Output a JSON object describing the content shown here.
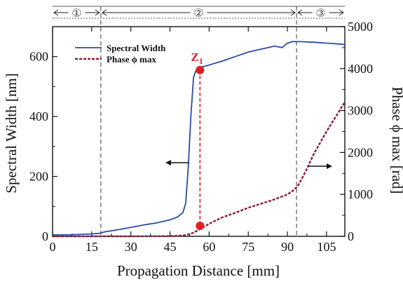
{
  "chart_data": {
    "type": "line",
    "xlabel": "Propagation Distance [mm]",
    "ylabel": "Spectral Width [nm]",
    "y2label": "Phase ϕ max [rad]",
    "xlim": [
      0,
      112
    ],
    "ylim": [
      0,
      700
    ],
    "y2lim": [
      0,
      5000
    ],
    "x_ticks": [
      0,
      15,
      30,
      45,
      60,
      75,
      90,
      105
    ],
    "y_ticks": [
      0,
      200,
      400,
      600
    ],
    "y2_ticks": [
      0,
      1000,
      2000,
      3000,
      4000,
      5000
    ],
    "y2_tick_labels": [
      "0",
      "1000",
      "2000",
      "3000",
      "4000",
      "5000"
    ],
    "legend_position": "top-left",
    "series": [
      {
        "name": "Spectral Width",
        "axis": "left",
        "color": "#2b4aa8",
        "style": "solid",
        "x": [
          0,
          5,
          10,
          15,
          18,
          20,
          25,
          30,
          35,
          40,
          45,
          48,
          50,
          51,
          52,
          53,
          54,
          55,
          56,
          57,
          60,
          65,
          70,
          75,
          80,
          85,
          88,
          90,
          92,
          95,
          100,
          105,
          110,
          112
        ],
        "values": [
          5,
          5,
          6,
          8,
          10,
          15,
          22,
          30,
          38,
          45,
          55,
          65,
          80,
          110,
          230,
          400,
          530,
          555,
          560,
          565,
          572,
          585,
          600,
          615,
          625,
          635,
          630,
          645,
          650,
          650,
          648,
          645,
          642,
          640
        ]
      },
      {
        "name": "Phase ϕ max",
        "axis": "right",
        "color": "#8b1a3a",
        "style": "dashed",
        "x": [
          0,
          30,
          45,
          50,
          53,
          56,
          60,
          65,
          70,
          75,
          80,
          85,
          90,
          92,
          94,
          97,
          100,
          105,
          110,
          112
        ],
        "values": [
          0,
          0,
          5,
          20,
          60,
          150,
          300,
          450,
          560,
          680,
          780,
          880,
          1000,
          1080,
          1200,
          1550,
          1950,
          2500,
          3000,
          3200
        ]
      }
    ],
    "regions": [
      {
        "label": "①",
        "from": 0,
        "to": 18.5
      },
      {
        "label": "②",
        "from": 18.5,
        "to": 93.5
      },
      {
        "label": "③",
        "from": 93.5,
        "to": 112
      }
    ],
    "marker": {
      "label": "Z",
      "label_sub": "1",
      "x": 56.5,
      "y_top": 555,
      "y_bottom": 35,
      "color": "#e02020"
    }
  }
}
